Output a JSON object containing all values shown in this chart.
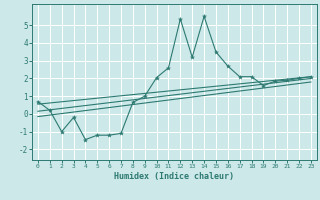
{
  "xlabel": "Humidex (Indice chaleur)",
  "bg_color": "#cce8e8",
  "grid_color": "#ffffff",
  "line_color": "#2d7a72",
  "xlim": [
    -0.5,
    23.5
  ],
  "ylim": [
    -2.6,
    6.2
  ],
  "yticks": [
    -2,
    -1,
    0,
    1,
    2,
    3,
    4,
    5
  ],
  "xticks": [
    0,
    1,
    2,
    3,
    4,
    5,
    6,
    7,
    8,
    9,
    10,
    11,
    12,
    13,
    14,
    15,
    16,
    17,
    18,
    19,
    20,
    21,
    22,
    23
  ],
  "line1_x": [
    0,
    1,
    2,
    3,
    4,
    5,
    6,
    7,
    8,
    9,
    10,
    11,
    12,
    13,
    14,
    15,
    16,
    17,
    18,
    19,
    20,
    21,
    22,
    23
  ],
  "line1_y": [
    0.7,
    0.2,
    -1.0,
    -0.2,
    -1.45,
    -1.2,
    -1.2,
    -1.1,
    0.65,
    1.0,
    2.05,
    2.6,
    5.35,
    3.2,
    5.5,
    3.5,
    2.7,
    2.1,
    2.1,
    1.6,
    1.85,
    1.9,
    2.0,
    2.1
  ],
  "line2_x": [
    0,
    23
  ],
  "line2_y": [
    0.55,
    2.1
  ],
  "line3_x": [
    0,
    23
  ],
  "line3_y": [
    0.15,
    2.0
  ],
  "line4_x": [
    0,
    23
  ],
  "line4_y": [
    -0.15,
    1.8
  ]
}
